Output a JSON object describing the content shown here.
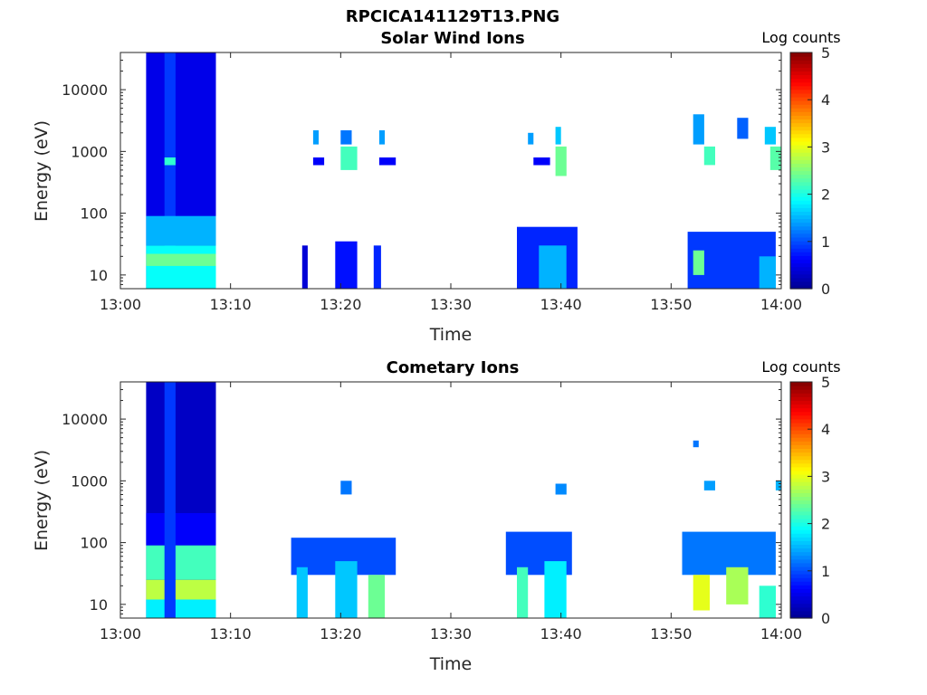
{
  "figure_title": "RPCICA141129T13.PNG",
  "colormap": [
    "#00008f",
    "#0000ff",
    "#0080ff",
    "#00ffff",
    "#80ff80",
    "#ffff00",
    "#ff8000",
    "#ff0000",
    "#800000"
  ],
  "chart_data": [
    {
      "type": "heatmap",
      "title": "Solar Wind Ions",
      "xlabel": "Time",
      "ylabel": "Energy (eV)",
      "yscale": "log",
      "xlim": [
        "13:00",
        "14:00"
      ],
      "ylim": [
        6,
        40000
      ],
      "xticks": [
        "13:00",
        "13:10",
        "13:20",
        "13:30",
        "13:40",
        "13:50",
        "14:00"
      ],
      "yticks": [
        "10",
        "100",
        "1000",
        "10000"
      ],
      "colorbar": {
        "label": "Log counts",
        "range": [
          0,
          5
        ],
        "ticks": [
          "0",
          "1",
          "2",
          "3",
          "4",
          "5"
        ]
      },
      "grid": false,
      "blobs": [
        {
          "t": [
            "13:02:20",
            "13:08:40"
          ],
          "e": [
            6,
            40000
          ],
          "v": 0.5
        },
        {
          "t": [
            "13:04:00",
            "13:05:00"
          ],
          "e": [
            6,
            40000
          ],
          "v": 0.9
        },
        {
          "t": [
            "13:02:20",
            "13:08:40"
          ],
          "e": [
            30,
            90
          ],
          "v": 1.5
        },
        {
          "t": [
            "13:02:20",
            "13:08:40"
          ],
          "e": [
            6,
            30
          ],
          "v": 1.9
        },
        {
          "t": [
            "13:04:00",
            "13:05:00"
          ],
          "e": [
            600,
            800
          ],
          "v": 2.1
        },
        {
          "t": [
            "13:02:20",
            "13:08:40"
          ],
          "e": [
            14,
            22
          ],
          "v": 2.4
        },
        {
          "t": [
            "13:16:30",
            "13:17:00"
          ],
          "e": [
            6,
            30
          ],
          "v": 0.4
        },
        {
          "t": [
            "13:19:30",
            "13:21:30"
          ],
          "e": [
            6,
            35
          ],
          "v": 0.7
        },
        {
          "t": [
            "13:23:00",
            "13:23:40"
          ],
          "e": [
            6,
            30
          ],
          "v": 0.8
        },
        {
          "t": [
            "13:17:30",
            "13:18:30"
          ],
          "e": [
            600,
            800
          ],
          "v": 0.6
        },
        {
          "t": [
            "13:20:00",
            "13:21:30"
          ],
          "e": [
            500,
            1200
          ],
          "v": 2.2
        },
        {
          "t": [
            "13:23:30",
            "13:25:00"
          ],
          "e": [
            600,
            800
          ],
          "v": 0.6
        },
        {
          "t": [
            "13:17:30",
            "13:18:00"
          ],
          "e": [
            1300,
            2200
          ],
          "v": 1.4
        },
        {
          "t": [
            "13:20:00",
            "13:21:00"
          ],
          "e": [
            1300,
            2200
          ],
          "v": 1.2
        },
        {
          "t": [
            "13:23:30",
            "13:24:00"
          ],
          "e": [
            1300,
            2200
          ],
          "v": 1.4
        },
        {
          "t": [
            "13:36:00",
            "13:41:30"
          ],
          "e": [
            6,
            60
          ],
          "v": 0.8
        },
        {
          "t": [
            "13:38:00",
            "13:40:30"
          ],
          "e": [
            6,
            30
          ],
          "v": 1.5
        },
        {
          "t": [
            "13:39:30",
            "13:40:30"
          ],
          "e": [
            400,
            1200
          ],
          "v": 2.4
        },
        {
          "t": [
            "13:37:30",
            "13:39:00"
          ],
          "e": [
            600,
            800
          ],
          "v": 0.6
        },
        {
          "t": [
            "13:39:30",
            "13:40:00"
          ],
          "e": [
            1300,
            2500
          ],
          "v": 1.6
        },
        {
          "t": [
            "13:37:00",
            "13:37:30"
          ],
          "e": [
            1300,
            2000
          ],
          "v": 1.4
        },
        {
          "t": [
            "13:51:30",
            "13:59:30"
          ],
          "e": [
            6,
            50
          ],
          "v": 0.9
        },
        {
          "t": [
            "13:52:00",
            "13:53:00"
          ],
          "e": [
            10,
            25
          ],
          "v": 2.4
        },
        {
          "t": [
            "13:58:00",
            "13:59:30"
          ],
          "e": [
            6,
            20
          ],
          "v": 1.5
        },
        {
          "t": [
            "13:52:00",
            "13:53:00"
          ],
          "e": [
            1300,
            4000
          ],
          "v": 1.4
        },
        {
          "t": [
            "13:53:00",
            "13:54:00"
          ],
          "e": [
            600,
            1200
          ],
          "v": 2.2
        },
        {
          "t": [
            "13:56:00",
            "13:57:00"
          ],
          "e": [
            1600,
            3500
          ],
          "v": 1.1
        },
        {
          "t": [
            "13:59:00",
            "14:00:00"
          ],
          "e": [
            500,
            1200
          ],
          "v": 2.3
        },
        {
          "t": [
            "13:58:30",
            "13:59:30"
          ],
          "e": [
            1300,
            2500
          ],
          "v": 1.6
        }
      ]
    },
    {
      "type": "heatmap",
      "title": "Cometary Ions",
      "xlabel": "Time",
      "ylabel": "Energy (eV)",
      "yscale": "log",
      "xlim": [
        "13:00",
        "14:00"
      ],
      "ylim": [
        6,
        40000
      ],
      "xticks": [
        "13:00",
        "13:10",
        "13:20",
        "13:30",
        "13:40",
        "13:50",
        "14:00"
      ],
      "yticks": [
        "10",
        "100",
        "1000",
        "10000"
      ],
      "colorbar": {
        "label": "Log counts",
        "range": [
          0,
          5
        ],
        "ticks": [
          "0",
          "1",
          "2",
          "3",
          "4",
          "5"
        ]
      },
      "grid": false,
      "blobs": [
        {
          "t": [
            "13:02:20",
            "13:08:40"
          ],
          "e": [
            6,
            40000
          ],
          "v": 0.3
        },
        {
          "t": [
            "13:02:20",
            "13:08:40"
          ],
          "e": [
            90,
            300
          ],
          "v": 0.6
        },
        {
          "t": [
            "13:02:20",
            "13:08:40"
          ],
          "e": [
            25,
            90
          ],
          "v": 2.2
        },
        {
          "t": [
            "13:02:20",
            "13:08:40"
          ],
          "e": [
            12,
            25
          ],
          "v": 2.8
        },
        {
          "t": [
            "13:02:20",
            "13:08:40"
          ],
          "e": [
            6,
            12
          ],
          "v": 1.8
        },
        {
          "t": [
            "13:04:00",
            "13:05:00"
          ],
          "e": [
            6,
            40000
          ],
          "v": 0.9
        },
        {
          "t": [
            "13:15:30",
            "13:25:00"
          ],
          "e": [
            30,
            120
          ],
          "v": 1.0
        },
        {
          "t": [
            "13:16:00",
            "13:17:00"
          ],
          "e": [
            6,
            40
          ],
          "v": 1.6
        },
        {
          "t": [
            "13:19:30",
            "13:21:30"
          ],
          "e": [
            6,
            50
          ],
          "v": 1.6
        },
        {
          "t": [
            "13:22:30",
            "13:24:00"
          ],
          "e": [
            6,
            30
          ],
          "v": 2.4
        },
        {
          "t": [
            "13:20:00",
            "13:21:00"
          ],
          "e": [
            600,
            1000
          ],
          "v": 1.2
        },
        {
          "t": [
            "13:35:00",
            "13:41:00"
          ],
          "e": [
            30,
            150
          ],
          "v": 1.0
        },
        {
          "t": [
            "13:36:00",
            "13:37:00"
          ],
          "e": [
            6,
            40
          ],
          "v": 2.2
        },
        {
          "t": [
            "13:38:30",
            "13:40:30"
          ],
          "e": [
            6,
            50
          ],
          "v": 1.8
        },
        {
          "t": [
            "13:39:30",
            "13:40:30"
          ],
          "e": [
            600,
            900
          ],
          "v": 1.3
        },
        {
          "t": [
            "13:51:00",
            "13:59:30"
          ],
          "e": [
            30,
            150
          ],
          "v": 1.2
        },
        {
          "t": [
            "13:52:00",
            "13:53:30"
          ],
          "e": [
            8,
            30
          ],
          "v": 3.0
        },
        {
          "t": [
            "13:55:00",
            "13:57:00"
          ],
          "e": [
            10,
            40
          ],
          "v": 2.7
        },
        {
          "t": [
            "13:58:00",
            "13:59:30"
          ],
          "e": [
            6,
            20
          ],
          "v": 2.1
        },
        {
          "t": [
            "13:53:00",
            "13:54:00"
          ],
          "e": [
            700,
            1000
          ],
          "v": 1.4
        },
        {
          "t": [
            "13:52:00",
            "13:52:30"
          ],
          "e": [
            3500,
            4500
          ],
          "v": 1.2
        },
        {
          "t": [
            "13:59:30",
            "14:00:00"
          ],
          "e": [
            700,
            1000
          ],
          "v": 1.5
        }
      ]
    }
  ]
}
